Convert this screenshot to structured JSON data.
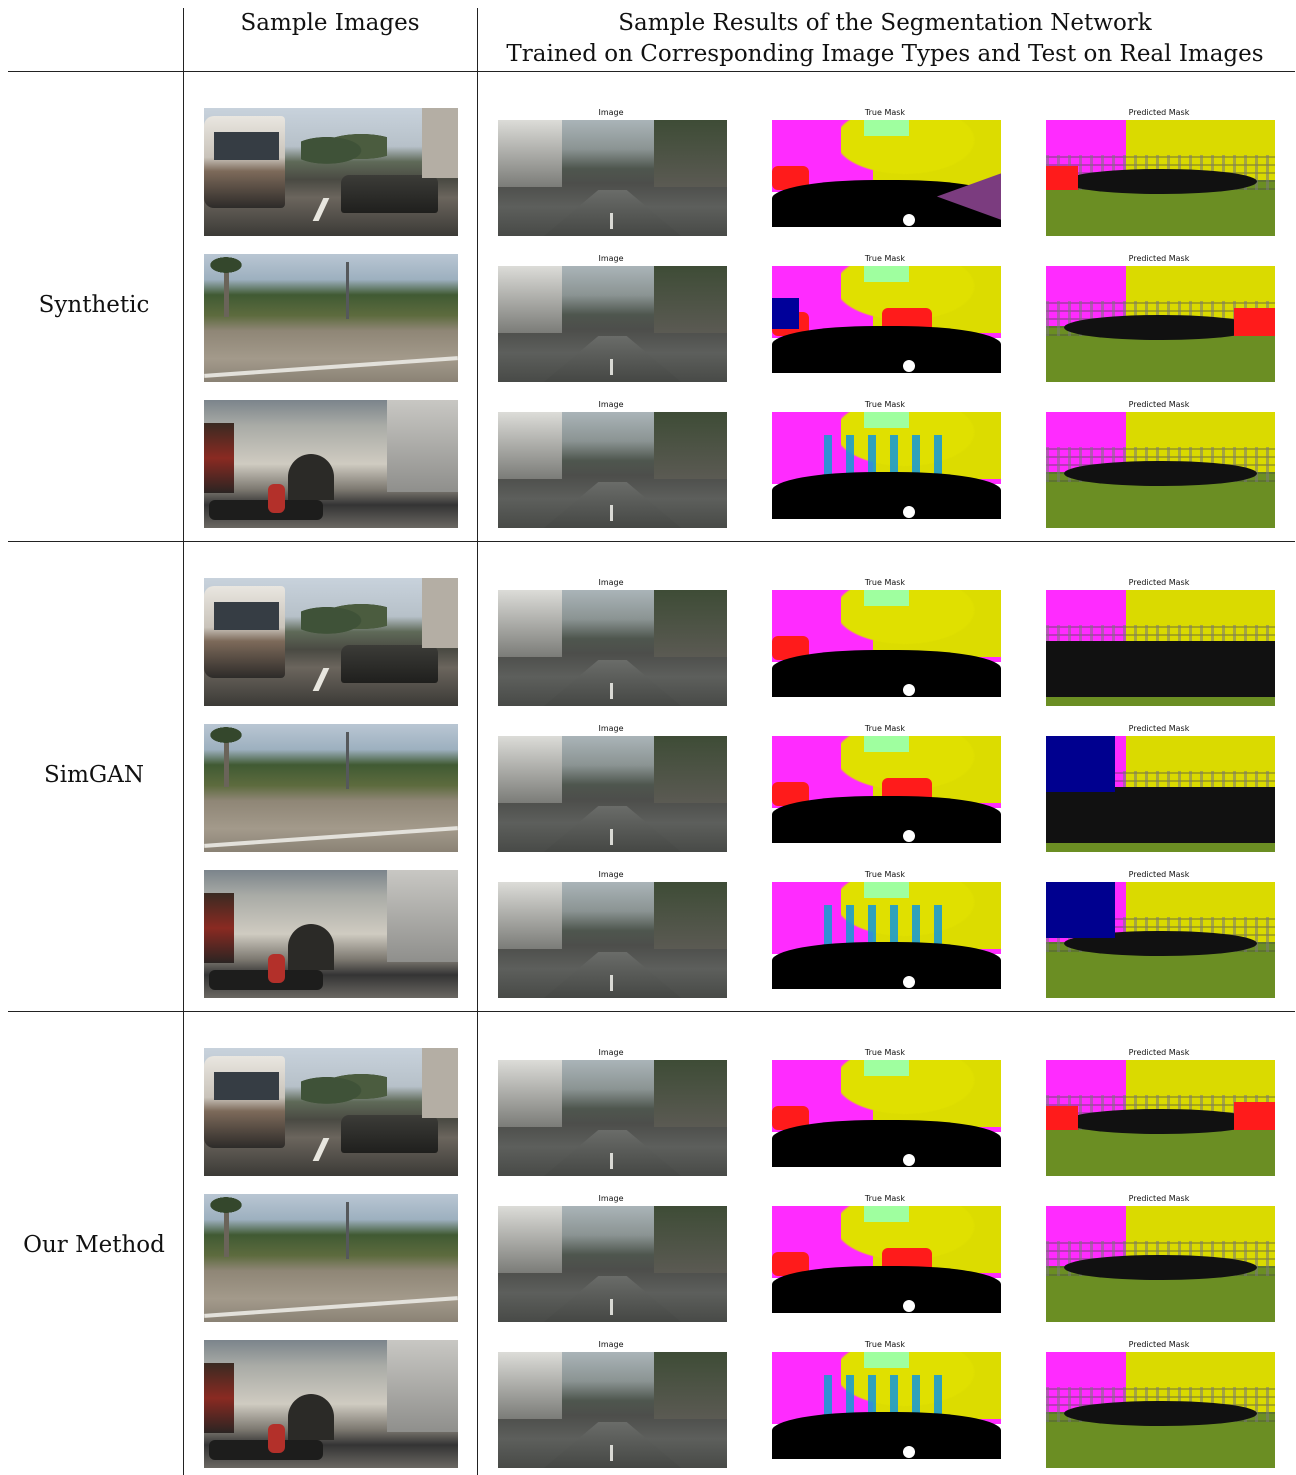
{
  "header": {
    "sample_images": "Sample Images",
    "results_line1": "Sample Results of the Segmentation Network",
    "results_line2": "Trained on Corresponding Image Types and Test on Real Images"
  },
  "captions": {
    "image": "Image",
    "true_mask": "True Mask",
    "predicted_mask": "Predicted Mask"
  },
  "groups": [
    {
      "label": "Synthetic"
    },
    {
      "label": "SimGAN"
    },
    {
      "label": "Our Method"
    }
  ],
  "colors": {
    "road": "#000000",
    "building": "#ff2bff",
    "vegetation": "#dcdc00",
    "car": "#ff1b1b",
    "person": "#1b9ad0",
    "terrain": "#6b8e23",
    "sky": "#9fff9f"
  }
}
